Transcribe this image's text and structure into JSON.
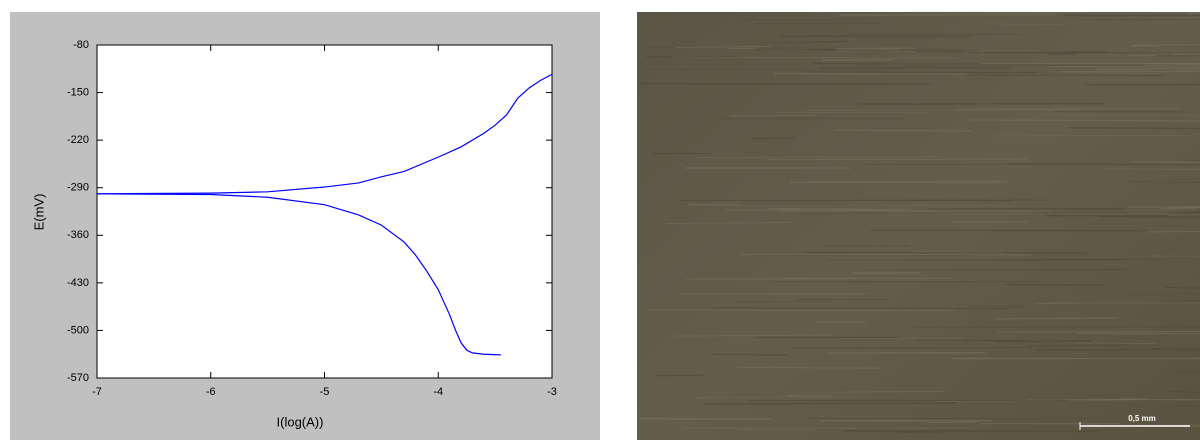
{
  "chart_data": {
    "type": "line",
    "xlabel": "I(log(A))",
    "ylabel": "E(mV)",
    "xlim": [
      -7,
      -3
    ],
    "xticks": [
      -7,
      -6,
      -5,
      -4,
      -3
    ],
    "ylim": [
      -570,
      -80
    ],
    "yticks": [
      -80,
      -150,
      -220,
      -290,
      -360,
      -430,
      -500,
      -570
    ],
    "series": [
      {
        "color": "#0000ff",
        "x": [
          -7,
          -6,
          -5.5,
          -5,
          -4.7,
          -4.5,
          -4.3,
          -4,
          -3.8,
          -3.6,
          -3.5,
          -3.4,
          -3.3,
          -3.2,
          -3.1,
          -3
        ],
        "values": [
          -299,
          -298,
          -296,
          -289,
          -283,
          -274,
          -266,
          -245,
          -230,
          -210,
          -198,
          -183,
          -158,
          -143,
          -132,
          -123
        ]
      },
      {
        "color": "#0000ff",
        "x": [
          -7,
          -6,
          -5.5,
          -5,
          -4.7,
          -4.5,
          -4.3,
          -4.2,
          -4.1,
          -4,
          -3.9,
          -3.85,
          -3.8,
          -3.75,
          -3.7,
          -3.6,
          -3.45
        ],
        "values": [
          -299,
          -300,
          -304,
          -315,
          -330,
          -345,
          -370,
          -389,
          -413,
          -440,
          -477,
          -499,
          -518,
          -529,
          -533,
          -535,
          -536
        ]
      }
    ]
  },
  "micrograph": {
    "scale_label": "0,5 mm"
  }
}
